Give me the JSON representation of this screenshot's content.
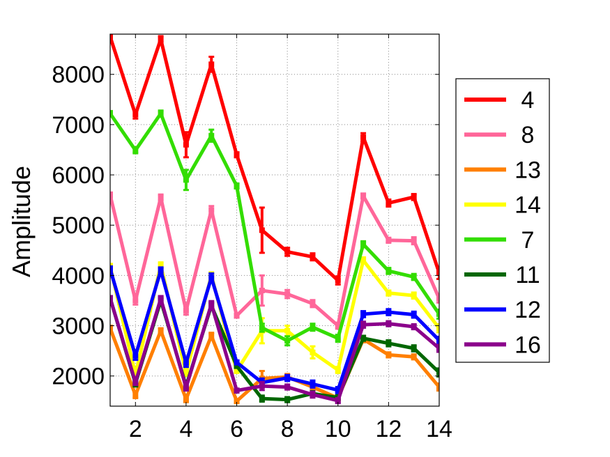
{
  "chart_data": {
    "type": "line",
    "title": "",
    "xlabel": "",
    "ylabel": "Amplitude",
    "xlim": [
      1,
      14
    ],
    "ylim": [
      1400,
      8800
    ],
    "x": [
      1,
      2,
      3,
      4,
      5,
      6,
      7,
      8,
      9,
      10,
      11,
      12,
      13,
      14
    ],
    "xticks": [
      2,
      4,
      6,
      8,
      10,
      12,
      14
    ],
    "yticks": [
      2000,
      3000,
      4000,
      5000,
      6000,
      7000,
      8000
    ],
    "grid": true,
    "legend_position": "right",
    "series": [
      {
        "name": "4",
        "color": "#ff0000",
        "values": [
          8750,
          7200,
          8700,
          6600,
          8200,
          6400,
          4900,
          4470,
          4370,
          3900,
          6750,
          5440,
          5560,
          4050
        ],
        "errors": [
          50,
          80,
          60,
          250,
          150,
          50,
          450,
          80,
          70,
          80,
          80,
          70,
          60,
          120
        ]
      },
      {
        "name": "8",
        "color": "#ff6699",
        "values": [
          5600,
          3500,
          5550,
          3300,
          5300,
          3200,
          3700,
          3630,
          3440,
          3000,
          5580,
          4700,
          4690,
          3540
        ],
        "errors": [
          50,
          80,
          60,
          80,
          80,
          40,
          300,
          80,
          70,
          60,
          50,
          50,
          70,
          80
        ]
      },
      {
        "name": "13",
        "color": "#ff7f00",
        "values": [
          2950,
          1620,
          2900,
          1540,
          2800,
          1500,
          1950,
          1980,
          1780,
          1560,
          2730,
          2420,
          2380,
          1780
        ],
        "errors": [
          50,
          60,
          50,
          60,
          60,
          40,
          150,
          60,
          60,
          50,
          60,
          50,
          50,
          70
        ]
      },
      {
        "name": "14",
        "color": "#ffff00",
        "values": [
          4180,
          2030,
          4200,
          2060,
          4000,
          2100,
          2900,
          2900,
          2470,
          2120,
          4300,
          3650,
          3600,
          2950
        ],
        "errors": [
          50,
          60,
          60,
          60,
          60,
          40,
          250,
          100,
          120,
          60,
          60,
          50,
          60,
          80
        ]
      },
      {
        "name": "7",
        "color": "#33dd00",
        "values": [
          7220,
          6490,
          7220,
          5900,
          6780,
          5780,
          2960,
          2700,
          2970,
          2750,
          4620,
          4090,
          3970,
          3230
        ],
        "errors": [
          50,
          60,
          60,
          200,
          120,
          50,
          80,
          90,
          70,
          70,
          60,
          60,
          60,
          90
        ]
      },
      {
        "name": "11",
        "color": "#006600",
        "values": [
          3550,
          1850,
          3500,
          1800,
          3400,
          2200,
          1550,
          1530,
          1650,
          1570,
          2750,
          2650,
          2550,
          2070
        ],
        "errors": [
          40,
          60,
          50,
          60,
          60,
          40,
          60,
          50,
          50,
          50,
          50,
          60,
          60,
          80
        ]
      },
      {
        "name": "12",
        "color": "#0000ff",
        "values": [
          4130,
          2400,
          4100,
          2260,
          3960,
          2270,
          1870,
          1960,
          1840,
          1720,
          3230,
          3270,
          3220,
          2710
        ],
        "errors": [
          50,
          80,
          60,
          80,
          80,
          40,
          80,
          60,
          70,
          60,
          60,
          60,
          60,
          70
        ]
      },
      {
        "name": "16",
        "color": "#8b008b",
        "values": [
          3550,
          1870,
          3540,
          1770,
          3430,
          1710,
          1800,
          1780,
          1630,
          1510,
          3020,
          3040,
          2980,
          2550
        ],
        "errors": [
          40,
          50,
          50,
          60,
          60,
          40,
          80,
          50,
          60,
          50,
          60,
          50,
          50,
          70
        ]
      }
    ]
  }
}
